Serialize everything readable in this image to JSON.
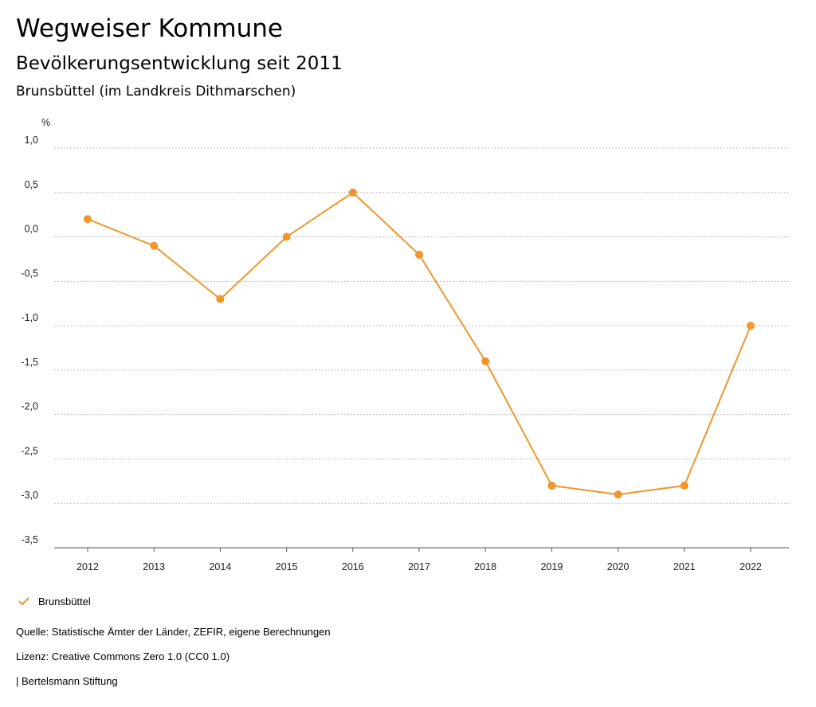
{
  "header": {
    "title": "Wegweiser Kommune",
    "subtitle": "Bevölkerungsentwicklung seit 2011",
    "region": "Brunsbüttel (im Landkreis Dithmarschen)"
  },
  "chart_data": {
    "type": "line",
    "ylabel": "%",
    "xlabel": "",
    "categories": [
      "2012",
      "2013",
      "2014",
      "2015",
      "2016",
      "2017",
      "2018",
      "2019",
      "2020",
      "2021",
      "2022"
    ],
    "series": [
      {
        "name": "Brunsbüttel",
        "color": "#f0962d",
        "values": [
          0.2,
          -0.1,
          -0.7,
          0.0,
          0.5,
          -0.2,
          -1.4,
          -2.8,
          -2.9,
          -2.8,
          -1.0
        ]
      }
    ],
    "ylim": [
      -3.5,
      1.0
    ],
    "yticks": [
      1.0,
      0.5,
      0.0,
      -0.5,
      -1.0,
      -1.5,
      -2.0,
      -2.5,
      -3.0,
      -3.5
    ],
    "ytick_labels": [
      "1,0",
      "0,5",
      "0,0",
      "-0,5",
      "-1,0",
      "-1,5",
      "-2,0",
      "-2,5",
      "-3,0",
      "-3,5"
    ],
    "grid": true,
    "legend_position": "bottom-left"
  },
  "legend": {
    "label": "Brunsbüttel"
  },
  "footer": {
    "source": "Quelle: Statistische Ämter der Länder, ZEFIR, eigene Berechnungen",
    "license": "Lizenz: Creative Commons Zero 1.0 (CC0 1.0)",
    "publisher": "| Bertelsmann Stiftung"
  }
}
